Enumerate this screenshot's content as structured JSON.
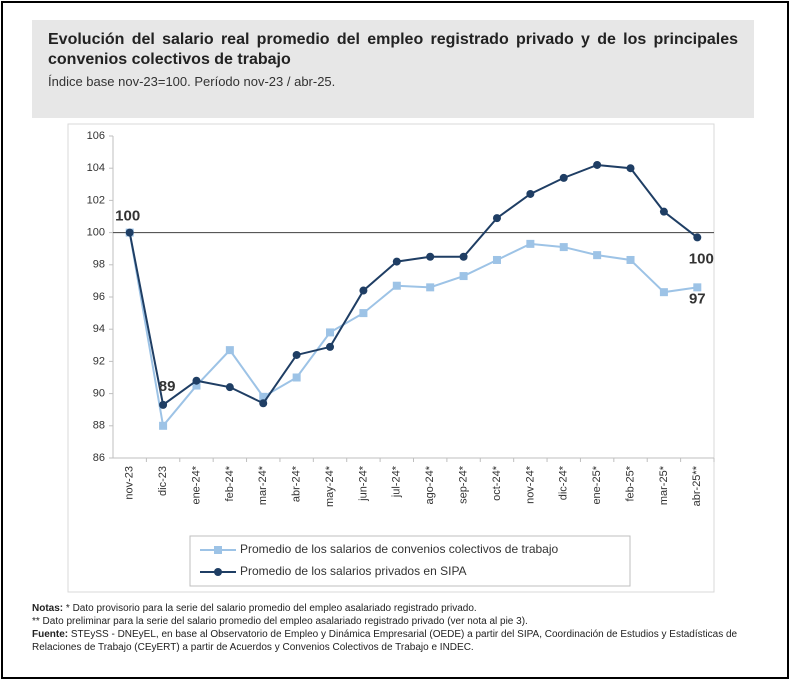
{
  "chart_data": {
    "type": "line",
    "title": "Evolución del salario real promedio del empleo registrado privado y de los principales convenios colectivos de trabajo",
    "subtitle": "Índice base nov-23=100. Período nov-23 / abr-25.",
    "categories": [
      "nov-23",
      "dic-23",
      "ene-24*",
      "feb-24*",
      "mar-24*",
      "abr-24*",
      "may-24*",
      "jun-24*",
      "jul-24*",
      "ago-24*",
      "sep-24*",
      "oct-24*",
      "nov-24*",
      "dic-24*",
      "ene-25*",
      "feb-25*",
      "mar-25*",
      "abr-25**"
    ],
    "series": [
      {
        "name": "Promedio de los salarios de convenios colectivos de trabajo",
        "color": "#9dc3e6",
        "marker": "square",
        "values": [
          100,
          88.0,
          90.5,
          92.7,
          89.8,
          91.0,
          93.8,
          95.0,
          96.7,
          96.6,
          97.3,
          98.3,
          99.3,
          99.1,
          98.6,
          98.3,
          96.3,
          96.6
        ],
        "value_labels": [
          null,
          null,
          null,
          null,
          null,
          null,
          null,
          null,
          null,
          null,
          null,
          null,
          null,
          null,
          null,
          null,
          null,
          "97"
        ]
      },
      {
        "name": "Promedio de los salarios privados en SIPA",
        "color": "#1f3e64",
        "marker": "circle",
        "values": [
          100,
          89.3,
          90.8,
          90.4,
          89.4,
          92.4,
          92.9,
          96.4,
          98.2,
          98.5,
          98.5,
          100.9,
          102.4,
          103.4,
          104.2,
          104.0,
          101.3,
          99.7
        ],
        "value_labels": [
          "100",
          "89",
          null,
          null,
          null,
          null,
          null,
          null,
          null,
          null,
          null,
          null,
          null,
          null,
          null,
          null,
          null,
          "100"
        ]
      }
    ],
    "ylim": [
      86,
      106
    ],
    "yticks": [
      86,
      88,
      90,
      92,
      94,
      96,
      98,
      100,
      102,
      104,
      106
    ],
    "reference_line": 100,
    "grid": false
  },
  "notes": [
    {
      "label": "Notas:",
      "text": " * Dato provisorio para la serie del salario promedio del empleo asalariado registrado privado."
    },
    {
      "label": null,
      "text": "** Dato preliminar para la serie del salario promedio del empleo asalariado registrado privado (ver nota al pie 3)."
    },
    {
      "label": "Fuente:",
      "text": " STEySS - DNEyEL, en base al Observatorio de Empleo y Dinámica Empresarial (OEDE) a partir del SIPA, Coordinación de Estudios y Estadísticas de Relaciones de Trabajo (CEyERT) a partir de Acuerdos y Convenios Colectivos de Trabajo e INDEC."
    }
  ]
}
